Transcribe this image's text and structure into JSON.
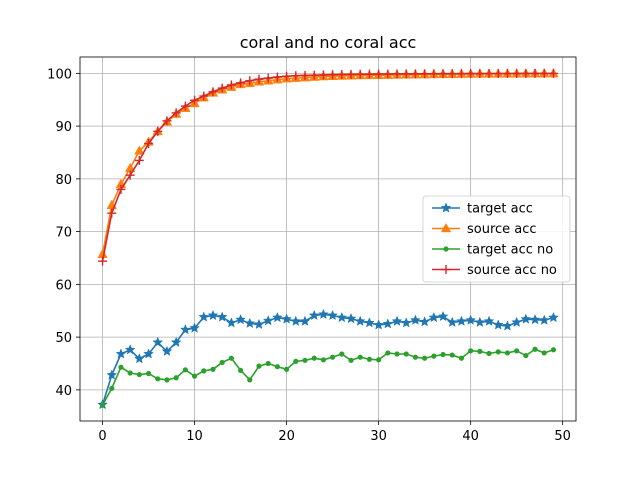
{
  "chart_data": {
    "type": "line",
    "title": "coral and no coral acc",
    "xlabel": "",
    "ylabel": "",
    "xlim": [
      -2.45,
      51.45
    ],
    "ylim": [
      34.1,
      103.1
    ],
    "xticks": [
      0,
      10,
      20,
      30,
      40,
      50
    ],
    "yticks": [
      40,
      50,
      60,
      70,
      80,
      90,
      100
    ],
    "grid": true,
    "legend_position": "center-right",
    "x": [
      0,
      1,
      2,
      3,
      4,
      5,
      6,
      7,
      8,
      9,
      10,
      11,
      12,
      13,
      14,
      15,
      16,
      17,
      18,
      19,
      20,
      21,
      22,
      23,
      24,
      25,
      26,
      27,
      28,
      29,
      30,
      31,
      32,
      33,
      34,
      35,
      36,
      37,
      38,
      39,
      40,
      41,
      42,
      43,
      44,
      45,
      46,
      47,
      48,
      49
    ],
    "series": [
      {
        "name": "target acc",
        "color": "#1f77b4",
        "marker": "star",
        "values": [
          37.2,
          42.8,
          46.8,
          47.6,
          45.9,
          46.8,
          49.0,
          47.3,
          49.0,
          51.4,
          51.7,
          53.8,
          54.1,
          53.8,
          52.7,
          53.3,
          52.6,
          52.4,
          53.1,
          53.7,
          53.4,
          53.0,
          53.0,
          54.1,
          54.3,
          54.1,
          53.7,
          53.5,
          53.0,
          52.7,
          52.3,
          52.5,
          53.0,
          52.7,
          53.2,
          52.9,
          53.7,
          53.9,
          52.8,
          53.0,
          53.2,
          52.8,
          53.0,
          52.3,
          52.1,
          52.8,
          53.4,
          53.3,
          53.2,
          53.7
        ]
      },
      {
        "name": "source acc",
        "color": "#ff7f0e",
        "marker": "triangle",
        "values": [
          65.7,
          75.0,
          79.0,
          82.0,
          85.3,
          87.0,
          89.0,
          90.8,
          92.3,
          93.4,
          94.3,
          95.4,
          96.3,
          96.9,
          97.4,
          97.9,
          98.1,
          98.4,
          98.6,
          98.8,
          99.0,
          99.1,
          99.2,
          99.3,
          99.4,
          99.45,
          99.5,
          99.55,
          99.6,
          99.62,
          99.65,
          99.67,
          99.7,
          99.72,
          99.75,
          99.77,
          99.8,
          99.82,
          99.85,
          99.87,
          99.88,
          99.89,
          99.9,
          99.91,
          99.92,
          99.93,
          99.94,
          99.95,
          99.96,
          99.96
        ]
      },
      {
        "name": "target acc no",
        "color": "#2ca02c",
        "marker": "dot",
        "values": [
          37.1,
          40.3,
          44.3,
          43.2,
          42.9,
          43.1,
          42.1,
          41.9,
          42.3,
          43.8,
          42.6,
          43.6,
          43.9,
          45.2,
          46.0,
          43.7,
          41.9,
          44.5,
          45.0,
          44.4,
          43.9,
          45.4,
          45.6,
          46.0,
          45.7,
          46.2,
          46.8,
          45.6,
          46.2,
          45.8,
          45.7,
          47.0,
          46.8,
          46.8,
          46.2,
          46.0,
          46.4,
          46.7,
          46.6,
          46.0,
          47.4,
          47.3,
          46.9,
          47.2,
          47.0,
          47.4,
          46.5,
          47.7,
          47.0,
          47.6
        ]
      },
      {
        "name": "source acc no",
        "color": "#d62728",
        "marker": "plus",
        "values": [
          64.4,
          73.5,
          78.0,
          80.7,
          83.5,
          86.7,
          89.0,
          91.0,
          92.5,
          93.8,
          94.9,
          95.7,
          96.5,
          97.2,
          97.8,
          98.2,
          98.6,
          98.9,
          99.1,
          99.3,
          99.45,
          99.55,
          99.6,
          99.65,
          99.7,
          99.75,
          99.78,
          99.8,
          99.83,
          99.85,
          99.87,
          99.88,
          99.89,
          99.9,
          99.91,
          99.92,
          99.93,
          99.94,
          99.95,
          99.95,
          99.96,
          99.96,
          99.97,
          99.97,
          99.97,
          99.98,
          99.98,
          99.98,
          99.99,
          99.99
        ]
      }
    ]
  }
}
